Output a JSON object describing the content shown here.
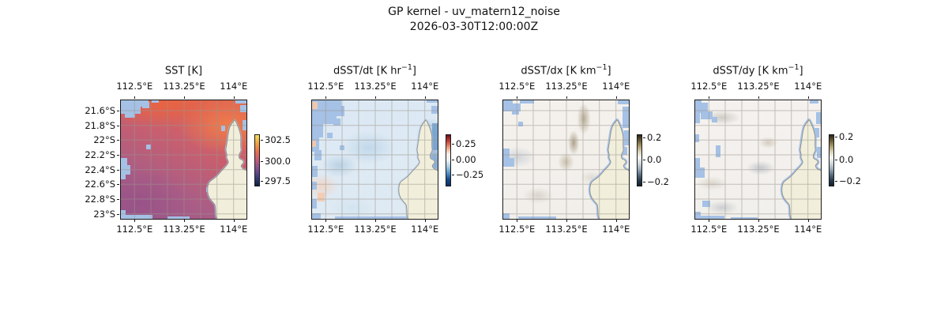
{
  "figure": {
    "title_line1": "GP kernel - uv_matern12_noise",
    "title_line2": "2026-03-30T12:00:00Z"
  },
  "chart_data": {
    "type": "heatmap",
    "layout": "1 row x 4 geographic map panels, each with its own vertical colorbar",
    "region": "North West Cape / Exmouth area, Western Australia; cream land mass at lower right, light-blue pixels = cloud-masked data, gray lat/lon graticule",
    "lon_ticks": [
      "112.5°E",
      "113.25°E",
      "114°E"
    ],
    "lat_ticks": [
      "21.6°S",
      "21.8°S",
      "22°S",
      "22.2°S",
      "22.4°S",
      "22.6°S",
      "22.8°S",
      "23°S"
    ],
    "grid": true,
    "panels": [
      {
        "title_text": "SST [K]",
        "title_prefix": "SST [K]",
        "title_sup": "",
        "title_suffix": "",
        "colorbar": {
          "ticks": [
            "302.5",
            "300.0",
            "297.5"
          ],
          "tick_values": [
            302.5,
            300.0,
            297.5
          ],
          "colormap": "thermal (yellow-orange-purple-dark navy)",
          "stops": [
            "#f3e05a",
            "#f2a13f",
            "#e96e4c",
            "#c05a7b",
            "#7f5090",
            "#3d3e7c",
            "#0b2145"
          ]
        },
        "field_summary": "SST ~297.5-302.5 K: orange (~301-302 K) along north and near the coast, purple (~298-299 K) toward the southwest; cloud-masked blue patches at NW corner, W edge and S edge"
      },
      {
        "title_text": "dSST/dt [K hr⁻¹]",
        "title_prefix": "dSST/dt [K hr",
        "title_sup": "−1",
        "title_suffix": "]",
        "colorbar": {
          "ticks": [
            "0.25",
            "0.00",
            "−0.25"
          ],
          "tick_values": [
            0.25,
            0.0,
            -0.25
          ],
          "colormap": "RdBu diverging (dark red-white-dark blue)",
          "stops": [
            "#6c0d20",
            "#c34438",
            "#eda283",
            "#f9f1ec",
            "#eef2f5",
            "#a8cde3",
            "#5592c5",
            "#174a86",
            "#0b3161"
          ]
        },
        "field_summary": "mostly near zero / slightly negative (pale blue) with faint warm peach patches SW; darker blue streak in gulf east of the cape; large masked region NW"
      },
      {
        "title_text": "dSST/dx [K km⁻¹]",
        "title_prefix": "dSST/dx [K km",
        "title_sup": "−1",
        "title_suffix": "]",
        "colorbar": {
          "ticks": [
            "0.2",
            "0.0",
            "−0.2"
          ],
          "tick_values": [
            0.2,
            0.0,
            -0.2
          ],
          "colormap": "diff-like diverging (dark olive-brown / white / slate-navy)",
          "stops": [
            "#2a2517",
            "#695c38",
            "#ab9c70",
            "#ddd3bd",
            "#f7f6f3",
            "#d3d9dd",
            "#9fadba",
            "#5d7286",
            "#2b3d4f",
            "#131f2b"
          ]
        },
        "field_summary": "near-zero off-white field with positive olive-brown diagonal streaks NE of center and faint gray-blue smudges W; blue coastal fringe of masked pixels"
      },
      {
        "title_text": "dSST/dy [K km⁻¹]",
        "title_prefix": "dSST/dy [K km",
        "title_sup": "−1",
        "title_suffix": "]",
        "colorbar": {
          "ticks": [
            "0.2",
            "0.0",
            "−0.2"
          ],
          "tick_values": [
            0.2,
            0.0,
            -0.2
          ],
          "colormap": "diff-like diverging (dark olive-brown / white / slate-navy)",
          "stops": [
            "#2a2517",
            "#695c38",
            "#ab9c70",
            "#ddd3bd",
            "#f7f6f3",
            "#d3d9dd",
            "#9fadba",
            "#5d7286",
            "#2b3d4f",
            "#131f2b"
          ]
        },
        "field_summary": "near-zero off-white field with faint tan and gray-blue smudges; masked blue patches NW corner, W edge, S edge and along the coast"
      }
    ]
  }
}
